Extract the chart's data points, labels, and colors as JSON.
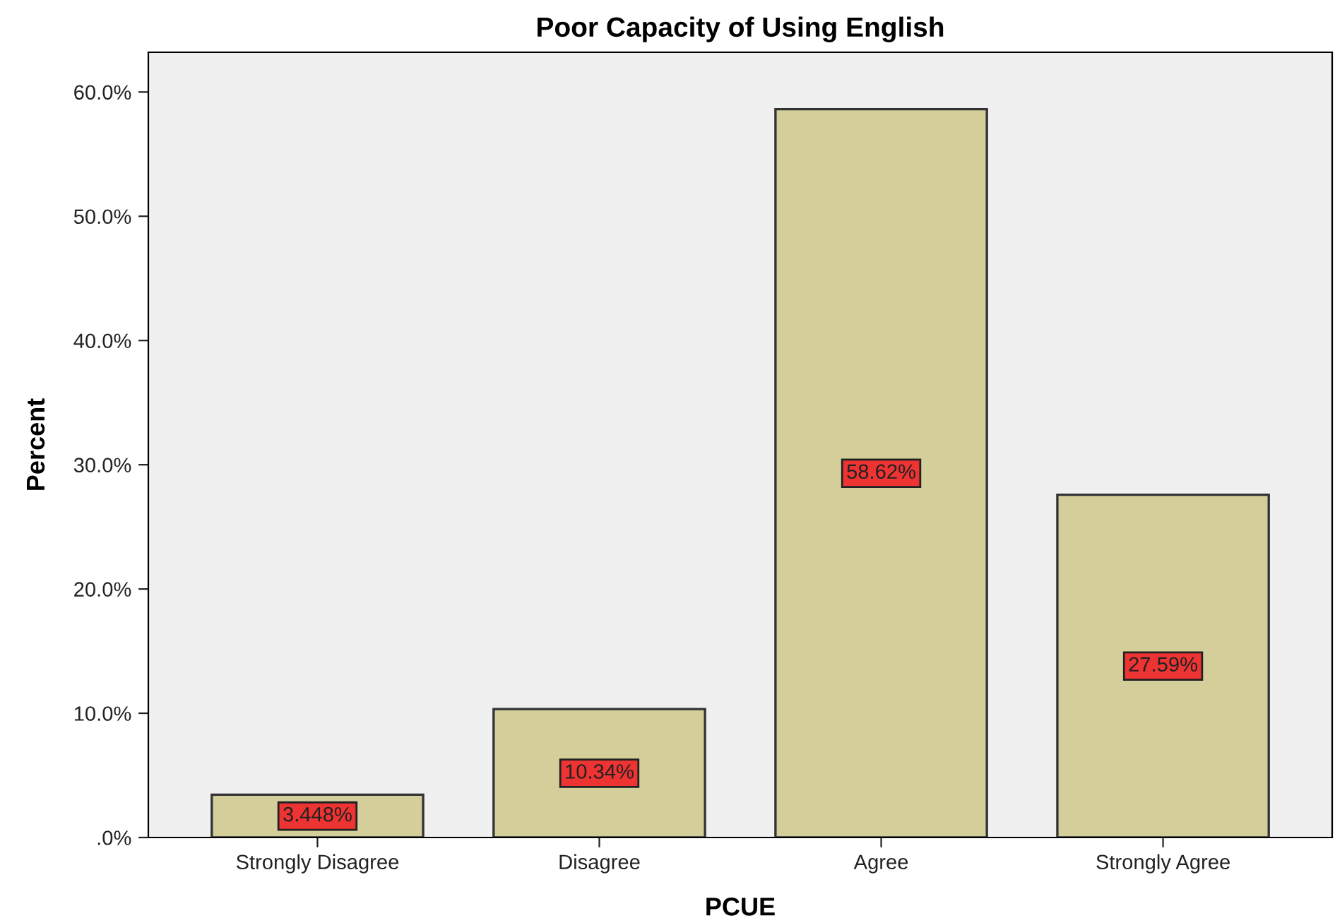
{
  "chart_data": {
    "type": "bar",
    "title": "Poor Capacity of Using English",
    "xlabel": "PCUE",
    "ylabel": "Percent",
    "categories": [
      "Strongly Disagree",
      "Disagree",
      "Agree",
      "Strongly Agree"
    ],
    "values": [
      3.448,
      10.34,
      58.62,
      27.59
    ],
    "value_labels": [
      "3.448%",
      "10.34%",
      "58.62%",
      "27.59%"
    ],
    "color": "#d3ce9a",
    "ylim": [
      0,
      63.2
    ],
    "yticks": [
      {
        "value": 0,
        "label": ".0%"
      },
      {
        "value": 10,
        "label": "10.0%"
      },
      {
        "value": 20,
        "label": "20.0%"
      },
      {
        "value": 30,
        "label": "30.0%"
      },
      {
        "value": 40,
        "label": "40.0%"
      },
      {
        "value": 50,
        "label": "50.0%"
      },
      {
        "value": 60,
        "label": "60.0%"
      }
    ],
    "grid": false,
    "legend": false
  }
}
